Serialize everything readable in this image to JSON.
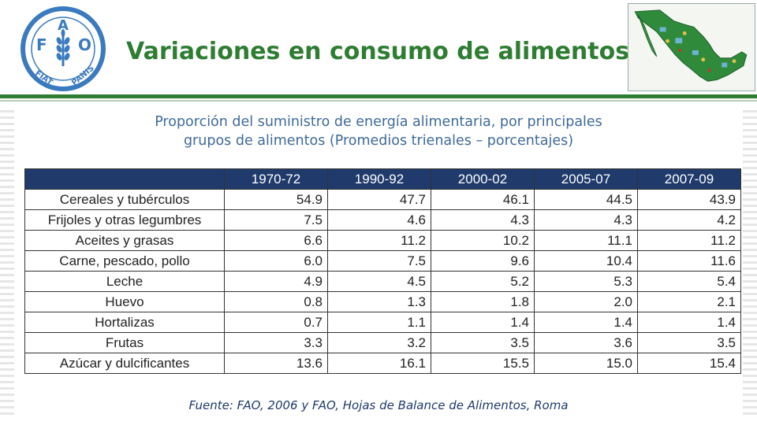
{
  "header": {
    "title": "Variaciones en consumo de alimentos",
    "logo_text": {
      "letters": [
        "F",
        "A",
        "O"
      ],
      "motto_left": "FIAT",
      "motto_right": "PANIS"
    },
    "logo_color": "#3a7abf",
    "accent_color": "#2e7d32"
  },
  "table_title": {
    "line1": "Proporción del suministro de energía alimentaria, por principales",
    "line2": "grupos de alimentos (Promedios trienales – porcentajes)"
  },
  "table": {
    "columns": [
      "1970-72",
      "1990-92",
      "2000-02",
      "2005-07",
      "2007-09"
    ],
    "rows": [
      {
        "label": "Cereales y tubérculos",
        "values": [
          "54.9",
          "47.7",
          "46.1",
          "44.5",
          "43.9"
        ]
      },
      {
        "label": "Frijoles y otras legumbres",
        "values": [
          "7.5",
          "4.6",
          "4.3",
          "4.3",
          "4.2"
        ]
      },
      {
        "label": "Aceites y grasas",
        "values": [
          "6.6",
          "11.2",
          "10.2",
          "11.1",
          "11.2"
        ]
      },
      {
        "label": "Carne, pescado, pollo",
        "values": [
          "6.0",
          "7.5",
          "9.6",
          "10.4",
          "11.6"
        ]
      },
      {
        "label": "Leche",
        "values": [
          "4.9",
          "4.5",
          "5.2",
          "5.3",
          "5.4"
        ]
      },
      {
        "label": "Huevo",
        "values": [
          "0.8",
          "1.3",
          "1.8",
          "2.0",
          "2.1"
        ]
      },
      {
        "label": "Hortalizas",
        "values": [
          "0.7",
          "1.1",
          "1.4",
          "1.4",
          "1.4"
        ]
      },
      {
        "label": "Frutas",
        "values": [
          "3.3",
          "3.2",
          "3.5",
          "3.6",
          "3.5"
        ]
      },
      {
        "label": "Azúcar y dulcificantes",
        "values": [
          "13.6",
          "16.1",
          "15.5",
          "15.0",
          "15.4"
        ]
      }
    ]
  },
  "source": "Fuente: FAO, 2006 y FAO, Hojas de Balance de Alimentos, Roma"
}
